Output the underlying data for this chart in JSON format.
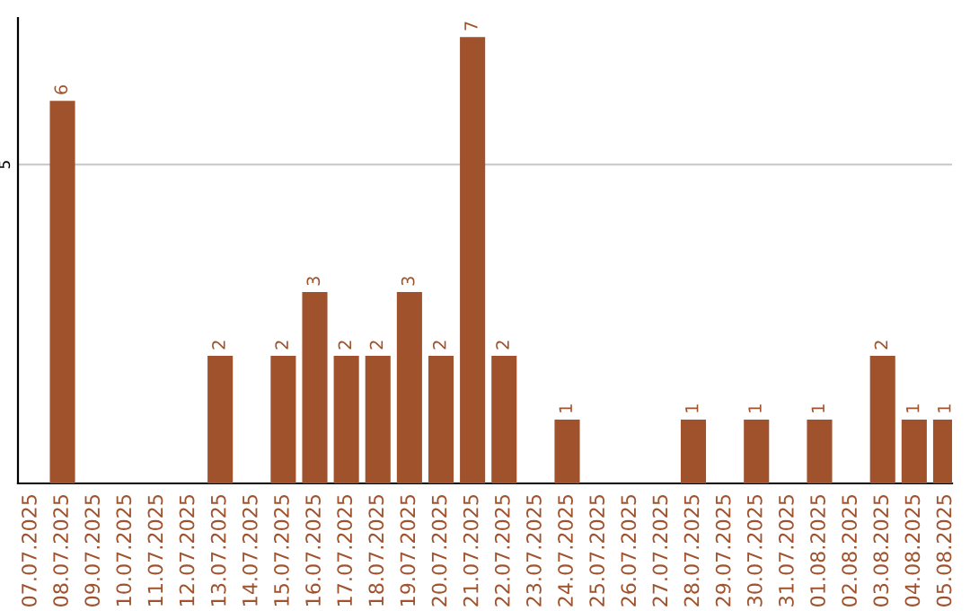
{
  "chart_data": {
    "type": "bar",
    "categories": [
      "07.07.2025",
      "08.07.2025",
      "09.07.2025",
      "10.07.2025",
      "11.07.2025",
      "12.07.2025",
      "13.07.2025",
      "14.07.2025",
      "15.07.2025",
      "16.07.2025",
      "17.07.2025",
      "18.07.2025",
      "19.07.2025",
      "20.07.2025",
      "21.07.2025",
      "22.07.2025",
      "23.07.2025",
      "24.07.2025",
      "25.07.2025",
      "26.07.2025",
      "27.07.2025",
      "28.07.2025",
      "29.07.2025",
      "30.07.2025",
      "31.07.2025",
      "01.08.2025",
      "02.08.2025",
      "03.08.2025",
      "04.08.2025",
      "05.08.2025"
    ],
    "values": [
      null,
      6,
      null,
      null,
      null,
      null,
      2,
      null,
      2,
      3,
      2,
      2,
      3,
      2,
      7,
      2,
      null,
      1,
      null,
      null,
      null,
      1,
      null,
      1,
      null,
      1,
      null,
      2,
      1,
      1
    ],
    "color": "#a0522d",
    "ylim": [
      0,
      7.3
    ],
    "yticks": [
      5
    ],
    "grid": "y",
    "data_labels": true,
    "legend": false
  }
}
